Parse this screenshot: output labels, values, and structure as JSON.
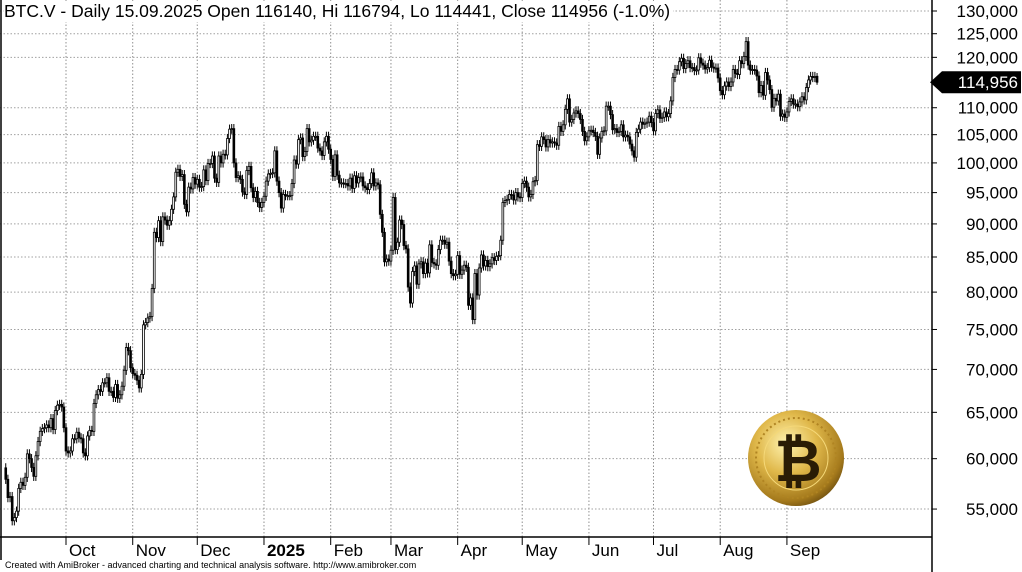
{
  "header": {
    "title": "BTC.V - Daily 15.09.2025 Open 116140, Hi 116794, Lo 114441, Close 114956 (-1.0%)"
  },
  "footer": {
    "text": "Created with AmiBroker - advanced charting and technical analysis software. http://www.amibroker.com"
  },
  "logo": {
    "name": "bitcoin-coin-logo",
    "symbol": "₿",
    "color": "#c9a034"
  },
  "chart_data": {
    "type": "candlestick",
    "symbol": "BTC.V",
    "interval": "Daily",
    "y_scale": "log",
    "ylim": [
      52000,
      130000
    ],
    "grid": true,
    "start_date": "2024-09-03",
    "end_date": "2025-09-15",
    "last_bar": {
      "date": "15.09.2025",
      "open": 116140,
      "high": 116794,
      "low": 114441,
      "close": 114956,
      "change": "-1.0%"
    },
    "last_price_label": "114,956",
    "y_ticks": [
      {
        "value": 130000,
        "label": "130,000"
      },
      {
        "value": 125000,
        "label": "125,000"
      },
      {
        "value": 120000,
        "label": "120,000"
      },
      {
        "value": 110000,
        "label": "110,000"
      },
      {
        "value": 105000,
        "label": "105,000"
      },
      {
        "value": 100000,
        "label": "100,000"
      },
      {
        "value": 95000,
        "label": "95,000"
      },
      {
        "value": 90000,
        "label": "90,000"
      },
      {
        "value": 85000,
        "label": "85,000"
      },
      {
        "value": 80000,
        "label": "80,000"
      },
      {
        "value": 75000,
        "label": "75,000"
      },
      {
        "value": 70000,
        "label": "70,000"
      },
      {
        "value": 65000,
        "label": "65,000"
      },
      {
        "value": 60000,
        "label": "60,000"
      },
      {
        "value": 55000,
        "label": "55,000"
      }
    ],
    "x_ticks": [
      {
        "date": "2024-10-01",
        "label": "Oct",
        "bold": false
      },
      {
        "date": "2024-11-01",
        "label": "Nov",
        "bold": false
      },
      {
        "date": "2024-12-01",
        "label": "Dec",
        "bold": false
      },
      {
        "date": "2025-01-01",
        "label": "2025",
        "bold": true
      },
      {
        "date": "2025-02-01",
        "label": "Feb",
        "bold": false
      },
      {
        "date": "2025-03-01",
        "label": "Mar",
        "bold": false
      },
      {
        "date": "2025-04-01",
        "label": "Apr",
        "bold": false
      },
      {
        "date": "2025-05-01",
        "label": "May",
        "bold": false
      },
      {
        "date": "2025-06-01",
        "label": "Jun",
        "bold": false
      },
      {
        "date": "2025-07-01",
        "label": "Jul",
        "bold": false
      },
      {
        "date": "2025-08-01",
        "label": "Aug",
        "bold": false
      },
      {
        "date": "2025-09-01",
        "label": "Sep",
        "bold": false
      }
    ],
    "close": [
      57900,
      56100,
      56200,
      53900,
      54200,
      54800,
      57000,
      57600,
      57300,
      58100,
      60500,
      60000,
      59100,
      58200,
      60300,
      61800,
      62900,
      63200,
      63300,
      63600,
      63300,
      64300,
      63100,
      65200,
      65800,
      65900,
      65600,
      63300,
      60800,
      60600,
      60800,
      62100,
      62100,
      62800,
      62200,
      62100,
      60600,
      60300,
      62400,
      63000,
      62900,
      66000,
      67000,
      67600,
      67400,
      68400,
      68400,
      69000,
      67400,
      67400,
      66700,
      68200,
      66600,
      67000,
      68000,
      69900,
      72700,
      72300,
      70200,
      69500,
      69300,
      68700,
      67800,
      69400,
      75600,
      75900,
      76500,
      76700,
      80500,
      88700,
      87900,
      90500,
      87300,
      91100,
      90600,
      89800,
      90500,
      92300,
      94300,
      98400,
      98900,
      97700,
      98000,
      93100,
      91900,
      95900,
      95600,
      97500,
      96400,
      97200,
      95900,
      96000,
      98800,
      97000,
      99900,
      99900,
      101200,
      97400,
      96700,
      101200,
      100000,
      101500,
      101400,
      104300,
      106000,
      106100,
      100000,
      97500,
      97800,
      97200,
      95100,
      94700,
      98700,
      99400,
      95800,
      94200,
      95200,
      93400,
      92600,
      93400,
      94400,
      96900,
      98100,
      98200,
      98300,
      102100,
      96900,
      95000,
      92500,
      94700,
      94500,
      94500,
      94500,
      96500,
      100500,
      99800,
      104100,
      104400,
      101100,
      102000,
      106100,
      103700,
      104000,
      104700,
      104700,
      102600,
      102100,
      101300,
      103700,
      104700,
      102400,
      100600,
      97700,
      101400,
      97900,
      96600,
      96600,
      96500,
      96500,
      96100,
      97400,
      95700,
      97800,
      96600,
      97500,
      97600,
      96100,
      95800,
      95500,
      96500,
      98300,
      96100,
      96600,
      96300,
      91500,
      88700,
      84300,
      84700,
      84400,
      86000,
      94200,
      86100,
      87200,
      90600,
      89900,
      86700,
      86200,
      80700,
      78500,
      82900,
      83700,
      81100,
      84000,
      84300,
      82600,
      84100,
      82700,
      86800,
      84200,
      84000,
      83800,
      86100,
      87500,
      87500,
      86900,
      87200,
      84400,
      82600,
      82300,
      82500,
      85200,
      82500,
      83100,
      83800,
      83500,
      78200,
      79200,
      76300,
      82600,
      79600,
      83400,
      85300,
      83700,
      84500,
      83600,
      84000,
      84900,
      84500,
      85100,
      85200,
      87500,
      93400,
      93700,
      93900,
      94700,
      94600,
      93800,
      95000,
      94300,
      94200,
      96500,
      96900,
      95900,
      94300,
      94700,
      96800,
      97000,
      103200,
      102900,
      104600,
      104100,
      102800,
      104100,
      103500,
      103700,
      103500,
      103100,
      106500,
      105600,
      106800,
      109700,
      111700,
      107300,
      107800,
      109000,
      109400,
      108900,
      107800,
      105600,
      103900,
      104600,
      105700,
      105800,
      105400,
      104700,
      101500,
      104400,
      105600,
      105700,
      110300,
      110300,
      108700,
      105900,
      106100,
      105400,
      105600,
      106800,
      104600,
      104900,
      104600,
      103300,
      102100,
      101000,
      105400,
      106000,
      107300,
      106900,
      107100,
      107300,
      108400,
      107200,
      105700,
      108900,
      109600,
      108000,
      108200,
      109200,
      108300,
      108900,
      111300,
      115900,
      117500,
      117400,
      119100,
      119800,
      117700,
      118700,
      119300,
      117900,
      117900,
      117300,
      117400,
      119900,
      118800,
      118400,
      117600,
      117900,
      119400,
      118000,
      117800,
      117800,
      115800,
      113300,
      112500,
      114200,
      115000,
      114100,
      115000,
      117500,
      116700,
      116500,
      119300,
      118700,
      120200,
      123300,
      118400,
      117400,
      117500,
      117400,
      116200,
      112900,
      114300,
      112400,
      116900,
      115400,
      113500,
      110100,
      111800,
      111300,
      112600,
      108400,
      108800,
      108200,
      109200,
      111200,
      111700,
      110700,
      110700,
      110200,
      111100,
      112100,
      111500,
      113900,
      115400,
      116100,
      115900,
      116100,
      114956
    ]
  }
}
